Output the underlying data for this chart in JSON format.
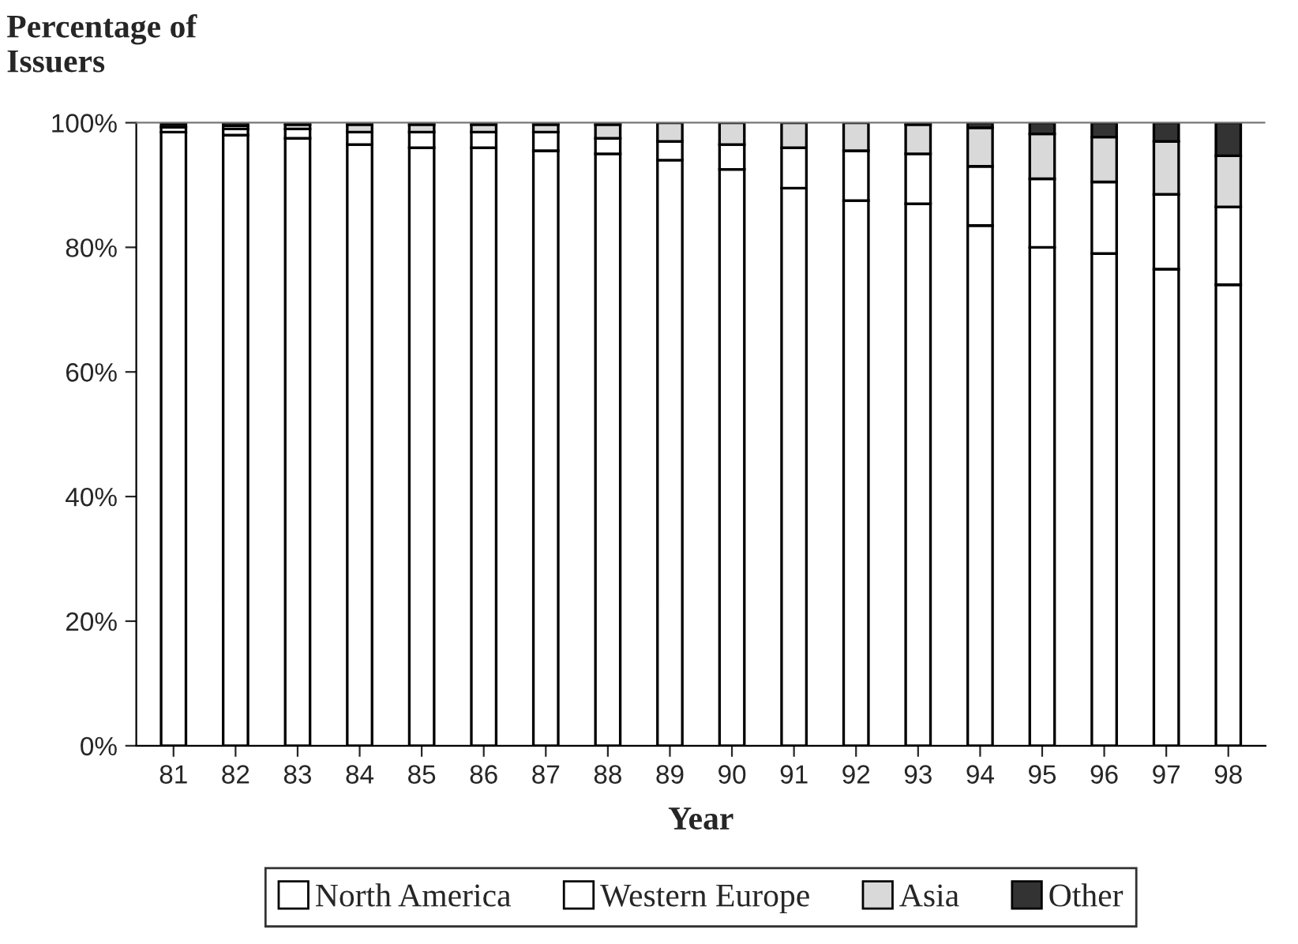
{
  "chart_data": {
    "type": "bar",
    "stacked": true,
    "ylabel": "Percentage of Issuers",
    "xlabel": "Year",
    "categories": [
      "81",
      "82",
      "83",
      "84",
      "85",
      "86",
      "87",
      "88",
      "89",
      "90",
      "91",
      "92",
      "93",
      "94",
      "95",
      "96",
      "97",
      "98"
    ],
    "series": [
      {
        "name": "North America",
        "color": "#ffffff",
        "values": [
          98.5,
          98,
          97.5,
          96.5,
          96,
          96,
          95.5,
          95,
          94,
          92.5,
          89.5,
          87.5,
          87,
          83.5,
          80,
          79,
          76.5,
          74
        ]
      },
      {
        "name": "Western Europe",
        "color": "#ffffff",
        "values": [
          0.8,
          1,
          1.5,
          2,
          2.5,
          2.5,
          3,
          2.5,
          3,
          4,
          6.5,
          8,
          8,
          9.5,
          11,
          11.5,
          12,
          12.5
        ]
      },
      {
        "name": "Asia",
        "color": "#d9d9d9",
        "values": [
          null,
          0.5,
          0.7,
          1.2,
          1.2,
          1.2,
          1.2,
          2.2,
          3,
          3.5,
          4,
          4.5,
          4.7,
          6.2,
          7.2,
          7.2,
          8.5,
          8.2
        ]
      },
      {
        "name": "Other",
        "color": "#333333",
        "values": [
          0.5,
          0.5,
          0.3,
          0.3,
          0.3,
          0.3,
          0.3,
          0.3,
          null,
          null,
          null,
          null,
          0.3,
          0.8,
          1.8,
          2.3,
          3,
          5.3
        ]
      }
    ],
    "ylim": [
      0,
      100
    ],
    "yticks": [
      {
        "value": 0,
        "label": "0%"
      },
      {
        "value": 20,
        "label": "20%"
      },
      {
        "value": 40,
        "label": "40%"
      },
      {
        "value": 60,
        "label": "60%"
      },
      {
        "value": 80,
        "label": "80%"
      },
      {
        "value": 100,
        "label": "100%"
      }
    ],
    "grid": false,
    "legend": "bottom"
  }
}
